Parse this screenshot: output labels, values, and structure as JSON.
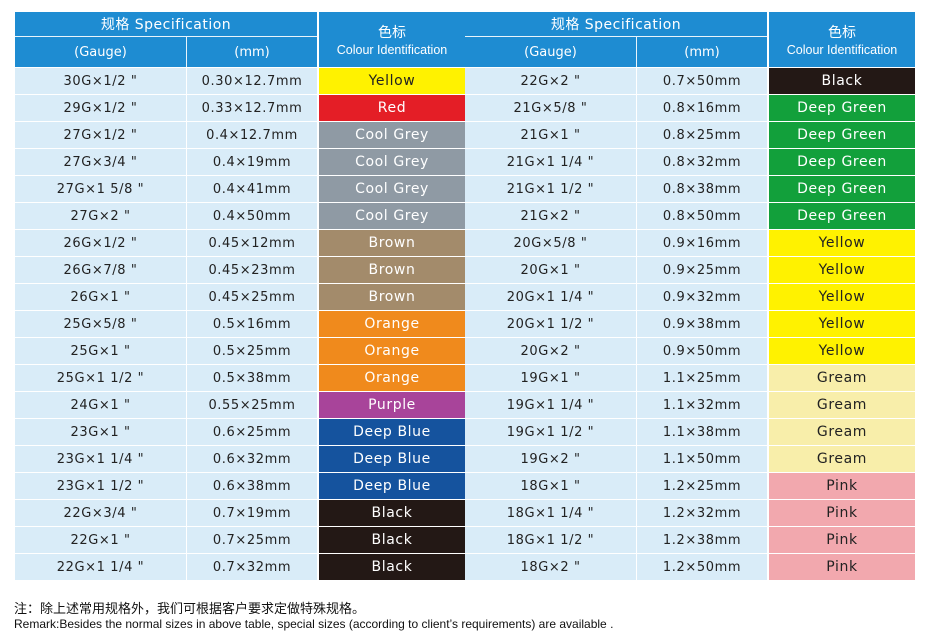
{
  "headers": {
    "spec": "规格 Specification",
    "color_cn": "色标",
    "color_en": "Colour Identification",
    "gauge": "(Gauge)",
    "mm": "(mm)"
  },
  "left_rows": [
    {
      "gauge": "30G×1/2 \"",
      "mm": "0.30×12.7mm",
      "color": "Yellow",
      "bg": "#fff200",
      "fg": "#222222"
    },
    {
      "gauge": "29G×1/2 \"",
      "mm": "0.33×12.7mm",
      "color": "Red",
      "bg": "#e41e26",
      "fg": "#ffffff"
    },
    {
      "gauge": "27G×1/2 \"",
      "mm": "0.4×12.7mm",
      "color": "Cool Grey",
      "bg": "#8f9aa4",
      "fg": "#ffffff"
    },
    {
      "gauge": "27G×3/4 \"",
      "mm": "0.4×19mm",
      "color": "Cool Grey",
      "bg": "#8f9aa4",
      "fg": "#ffffff"
    },
    {
      "gauge": "27G×1  5/8 \"",
      "mm": "0.4×41mm",
      "color": "Cool Grey",
      "bg": "#8f9aa4",
      "fg": "#ffffff"
    },
    {
      "gauge": "27G×2 \"",
      "mm": "0.4×50mm",
      "color": "Cool Grey",
      "bg": "#8f9aa4",
      "fg": "#ffffff"
    },
    {
      "gauge": "26G×1/2 \"",
      "mm": "0.45×12mm",
      "color": "Brown",
      "bg": "#a38b6b",
      "fg": "#ffffff"
    },
    {
      "gauge": "26G×7/8 \"",
      "mm": "0.45×23mm",
      "color": "Brown",
      "bg": "#a38b6b",
      "fg": "#ffffff"
    },
    {
      "gauge": "26G×1 \"",
      "mm": "0.45×25mm",
      "color": "Brown",
      "bg": "#a38b6b",
      "fg": "#ffffff"
    },
    {
      "gauge": "25G×5/8 \"",
      "mm": "0.5×16mm",
      "color": "Orange",
      "bg": "#f08a1c",
      "fg": "#ffffff"
    },
    {
      "gauge": "25G×1 \"",
      "mm": "0.5×25mm",
      "color": "Orange",
      "bg": "#f08a1c",
      "fg": "#ffffff"
    },
    {
      "gauge": "25G×1  1/2 \"",
      "mm": "0.5×38mm",
      "color": "Orange",
      "bg": "#f08a1c",
      "fg": "#ffffff"
    },
    {
      "gauge": "24G×1 \"",
      "mm": "0.55×25mm",
      "color": "Purple",
      "bg": "#a8449a",
      "fg": "#ffffff"
    },
    {
      "gauge": "23G×1 \"",
      "mm": "0.6×25mm",
      "color": "Deep Blue",
      "bg": "#15539e",
      "fg": "#ffffff"
    },
    {
      "gauge": "23G×1  1/4 \"",
      "mm": "0.6×32mm",
      "color": "Deep Blue",
      "bg": "#15539e",
      "fg": "#ffffff"
    },
    {
      "gauge": "23G×1  1/2 \"",
      "mm": "0.6×38mm",
      "color": "Deep Blue",
      "bg": "#15539e",
      "fg": "#ffffff"
    },
    {
      "gauge": "22G×3/4 \"",
      "mm": "0.7×19mm",
      "color": "Black",
      "bg": "#231815",
      "fg": "#ffffff"
    },
    {
      "gauge": "22G×1 \"",
      "mm": "0.7×25mm",
      "color": "Black",
      "bg": "#231815",
      "fg": "#ffffff"
    },
    {
      "gauge": "22G×1  1/4 \"",
      "mm": "0.7×32mm",
      "color": "Black",
      "bg": "#231815",
      "fg": "#ffffff"
    }
  ],
  "right_rows": [
    {
      "gauge": "22G×2 \"",
      "mm": "0.7×50mm",
      "color": "Black",
      "bg": "#231815",
      "fg": "#ffffff"
    },
    {
      "gauge": "21G×5/8 \"",
      "mm": "0.8×16mm",
      "color": "Deep Green",
      "bg": "#12a03b",
      "fg": "#ffffff"
    },
    {
      "gauge": "21G×1 \"",
      "mm": "0.8×25mm",
      "color": "Deep Green",
      "bg": "#12a03b",
      "fg": "#ffffff"
    },
    {
      "gauge": "21G×1  1/4 \"",
      "mm": "0.8×32mm",
      "color": "Deep Green",
      "bg": "#12a03b",
      "fg": "#ffffff"
    },
    {
      "gauge": "21G×1  1/2 \"",
      "mm": "0.8×38mm",
      "color": "Deep Green",
      "bg": "#12a03b",
      "fg": "#ffffff"
    },
    {
      "gauge": "21G×2 \"",
      "mm": "0.8×50mm",
      "color": "Deep Green",
      "bg": "#12a03b",
      "fg": "#ffffff"
    },
    {
      "gauge": "20G×5/8 \"",
      "mm": "0.9×16mm",
      "color": "Yellow",
      "bg": "#fff200",
      "fg": "#222222"
    },
    {
      "gauge": "20G×1 \"",
      "mm": "0.9×25mm",
      "color": "Yellow",
      "bg": "#fff200",
      "fg": "#222222"
    },
    {
      "gauge": "20G×1  1/4 \"",
      "mm": "0.9×32mm",
      "color": "Yellow",
      "bg": "#fff200",
      "fg": "#222222"
    },
    {
      "gauge": "20G×1  1/2 \"",
      "mm": "0.9×38mm",
      "color": "Yellow",
      "bg": "#fff200",
      "fg": "#222222"
    },
    {
      "gauge": "20G×2 \"",
      "mm": "0.9×50mm",
      "color": "Yellow",
      "bg": "#fff200",
      "fg": "#222222"
    },
    {
      "gauge": "19G×1 \"",
      "mm": "1.1×25mm",
      "color": "Gream",
      "bg": "#f8eeaa",
      "fg": "#222222"
    },
    {
      "gauge": "19G×1  1/4 \"",
      "mm": "1.1×32mm",
      "color": "Gream",
      "bg": "#f8eeaa",
      "fg": "#222222"
    },
    {
      "gauge": "19G×1  1/2 \"",
      "mm": "1.1×38mm",
      "color": "Gream",
      "bg": "#f8eeaa",
      "fg": "#222222"
    },
    {
      "gauge": "19G×2 \"",
      "mm": "1.1×50mm",
      "color": "Gream",
      "bg": "#f8eeaa",
      "fg": "#222222"
    },
    {
      "gauge": "18G×1 \"",
      "mm": "1.2×25mm",
      "color": "Pink",
      "bg": "#f2a8ae",
      "fg": "#222222"
    },
    {
      "gauge": "18G×1  1/4 \"",
      "mm": "1.2×32mm",
      "color": "Pink",
      "bg": "#f2a8ae",
      "fg": "#222222"
    },
    {
      "gauge": "18G×1  1/2 \"",
      "mm": "1.2×38mm",
      "color": "Pink",
      "bg": "#f2a8ae",
      "fg": "#222222"
    },
    {
      "gauge": "18G×2 \"",
      "mm": "1.2×50mm",
      "color": "Pink",
      "bg": "#f2a8ae",
      "fg": "#222222"
    }
  ],
  "remark_cn": "注：除上述常用规格外，我们可根据客户要求定做特殊规格。",
  "remark_en": "Remark:Besides  the normal sizes in above table, special sizes (according to client’s requirements) are  available ."
}
